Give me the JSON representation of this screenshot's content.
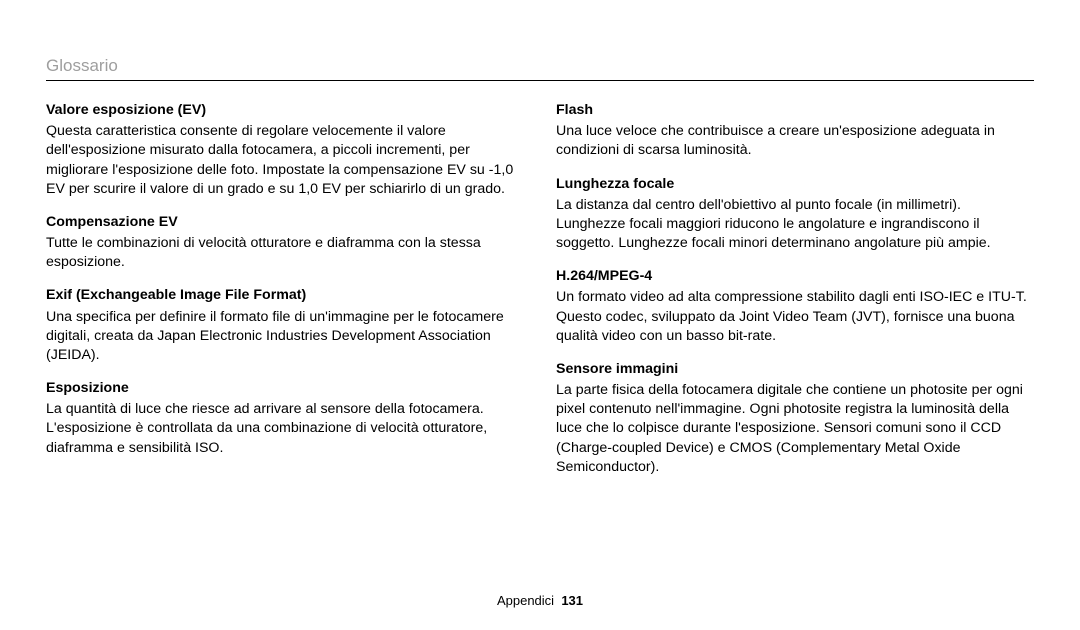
{
  "header": {
    "title": "Glossario"
  },
  "left": {
    "t1": "Valore esposizione (EV)",
    "d1": "Questa caratteristica consente di regolare velocemente il valore dell'esposizione misurato dalla fotocamera, a piccoli incrementi, per migliorare l'esposizione delle foto. Impostate la compensazione EV su -1,0 EV per scurire il valore di un grado e su 1,0 EV per schiarirlo di un grado.",
    "t2": "Compensazione EV",
    "d2": "Tutte le combinazioni di velocità otturatore e diaframma con la stessa esposizione.",
    "t3": "Exif (Exchangeable Image File Format)",
    "d3": "Una specifica per definire il formato file di un'immagine per le fotocamere digitali, creata da Japan Electronic Industries Development Association (JEIDA).",
    "t4": "Esposizione",
    "d4": "La quantità di luce che riesce ad arrivare al sensore della fotocamera. L'esposizione è controllata da una combinazione di velocità otturatore, diaframma e sensibilità ISO."
  },
  "right": {
    "t1": "Flash",
    "d1": "Una luce veloce che contribuisce a creare un'esposizione adeguata in condizioni di scarsa luminosità.",
    "t2": "Lunghezza focale",
    "d2": "La distanza dal centro dell'obiettivo al punto focale (in millimetri). Lunghezze focali maggiori riducono le angolature e ingrandiscono il soggetto. Lunghezze focali minori determinano angolature più ampie.",
    "t3": "H.264/MPEG-4",
    "d3": "Un formato video ad alta compressione stabilito dagli enti ISO-IEC e ITU-T. Questo codec, sviluppato da Joint Video Team (JVT), fornisce una buona qualità video con un basso bit-rate.",
    "t4": "Sensore immagini",
    "d4": "La parte fisica della fotocamera digitale che contiene un photosite per ogni pixel contenuto nell'immagine. Ogni photosite registra la luminosità della luce che lo colpisce durante l'esposizione. Sensori comuni sono il CCD (Charge-coupled Device) e CMOS (Complementary Metal Oxide Semiconductor)."
  },
  "footer": {
    "section": "Appendici",
    "page": "131"
  }
}
